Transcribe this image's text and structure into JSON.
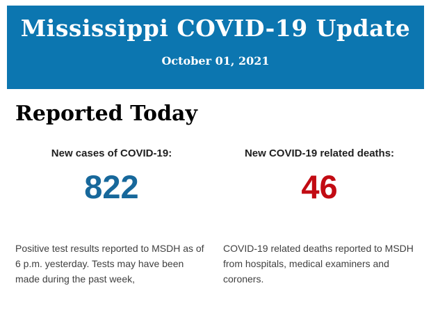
{
  "banner": {
    "title": "Mississippi COVID-19 Update",
    "date": "October 01, 2021",
    "background_color": "#0c76b0",
    "text_color": "#ffffff"
  },
  "main": {
    "heading": "Reported Today",
    "columns": [
      {
        "label": "New cases of COVID-19:",
        "value": "822",
        "value_color": "#17689b",
        "description": "Positive test results reported to MSDH as of 6 p.m. yesterday. Tests may have been made during the past week,"
      },
      {
        "label": "New COVID-19 related deaths:",
        "value": "46",
        "value_color": "#c20b13",
        "description": "COVID-19 related deaths reported to MSDH from hospitals, medical examiners and coroners."
      }
    ]
  }
}
